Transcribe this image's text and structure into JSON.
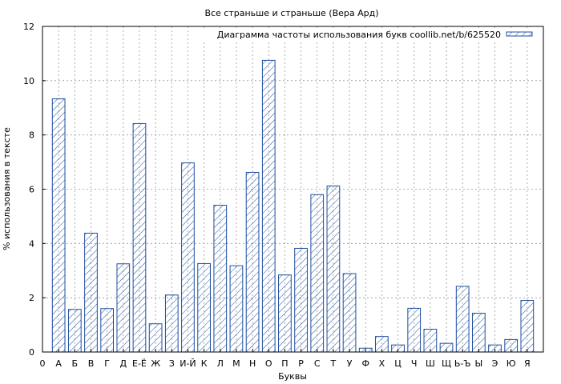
{
  "chart_data": {
    "type": "bar",
    "title": "Все страньше и страньше (Вера Ард)",
    "xlabel": "Буквы",
    "ylabel": "% использования в тексте",
    "ylim": [
      0,
      12
    ],
    "yticks": [
      "0",
      "2",
      "4",
      "6",
      "8",
      "10",
      "12"
    ],
    "x_origin_label": "0",
    "grid": true,
    "legend_position": "top-right",
    "bar_color": "#1f4fa0",
    "categories": [
      "А",
      "Б",
      "В",
      "Г",
      "Д",
      "Е-Ё",
      "Ж",
      "З",
      "И-Й",
      "К",
      "Л",
      "М",
      "Н",
      "О",
      "П",
      "Р",
      "С",
      "Т",
      "У",
      "Ф",
      "Х",
      "Ц",
      "Ч",
      "Ш",
      "Щ",
      "Ь-Ъ",
      "Ы",
      "Э",
      "Ю",
      "Я"
    ],
    "series": [
      {
        "name": "Диаграмма частоты использования букв coollib.net/b/625520",
        "values": [
          9.33,
          1.57,
          4.38,
          1.6,
          3.25,
          8.42,
          1.04,
          2.1,
          6.97,
          3.26,
          5.41,
          3.18,
          6.62,
          10.75,
          2.84,
          3.82,
          5.8,
          6.12,
          2.89,
          0.14,
          0.57,
          0.26,
          1.61,
          0.84,
          0.32,
          2.42,
          1.43,
          0.26,
          0.46,
          1.9
        ]
      }
    ]
  }
}
